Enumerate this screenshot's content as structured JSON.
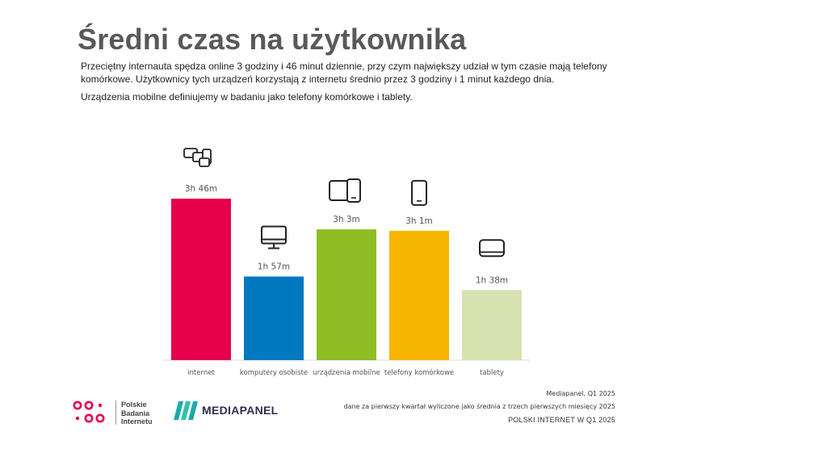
{
  "page": {
    "title": "Średni czas na użytkownika",
    "description_1": "Przeciętny internauta spędza online 3 godziny i 46 minut dziennie, przy czym największy udział w tym czasie mają telefony komórkowe. Użytkownicy tych urządzeń korzystają z internetu średnio przez 3 godziny i 1 minut każdego dnia.",
    "description_2": "Urządzenia mobilne definiujemy w badaniu jako telefony komórkowe i tablety."
  },
  "chart_data": {
    "type": "bar",
    "unit": "minutes",
    "categories": [
      "internet",
      "komputery osobiste",
      "urządzenia mobilne",
      "telefony komórkowe",
      "tablety"
    ],
    "values": [
      226,
      117,
      183,
      181,
      98
    ],
    "data_labels": [
      "3h 46m",
      "1h 57m",
      "3h 3m",
      "3h 1m",
      "1h 38m"
    ],
    "colors": [
      "#e6004c",
      "#0079c1",
      "#8fbd24",
      "#f7b500",
      "#d6e3b0"
    ],
    "icons": [
      "devices-icon",
      "desktop-icon",
      "mobile-devices-icon",
      "phone-icon",
      "tablet-icon"
    ],
    "ylim": [
      0,
      240
    ],
    "grid": false
  },
  "footer": {
    "source": "Mediapanel, Q1 2025",
    "note": "dane za pierwszy kwartał wyliczone jako średnia z trzech pierwszych miesięcy 2025",
    "brand": "POLSKI INTERNET W Q1 2025",
    "pbi_name": [
      "Polskie",
      "Badania",
      "Internetu"
    ],
    "mediapanel": "MEDIAPANEL"
  }
}
